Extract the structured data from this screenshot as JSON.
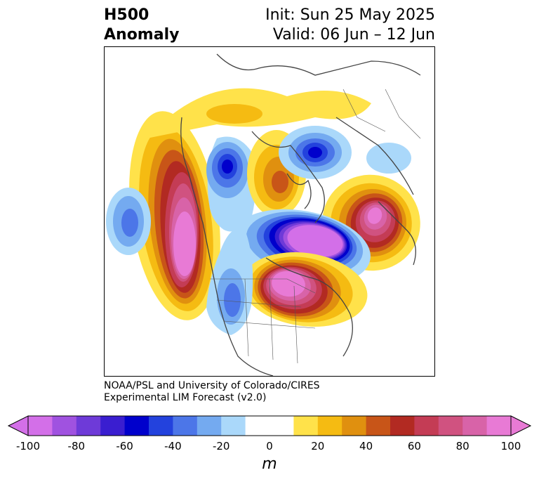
{
  "header": {
    "variable": "H500",
    "field": "Anomaly",
    "init": "Init: Sun 25 May 2025",
    "valid": "Valid: 06 Jun – 12 Jun"
  },
  "credit": {
    "line1": "NOAA/PSL and University of Colorado/CIRES",
    "line2": "Experimental LIM Forecast (v2.0)"
  },
  "colorbar": {
    "unit": "m",
    "ticks": [
      "-100",
      "-80",
      "-60",
      "-40",
      "-20",
      "0",
      "20",
      "40",
      "60",
      "80",
      "100"
    ],
    "colors": [
      "#d36fe8",
      "#a052e0",
      "#6e3ad8",
      "#3a1ed0",
      "#0000cc",
      "#2342dd",
      "#4c76e8",
      "#74aaf0",
      "#aad8fa",
      "#ffffff",
      "#ffffff",
      "#ffe24a",
      "#f5bb12",
      "#e0900f",
      "#c85518",
      "#b22a22",
      "#c43c55",
      "#d05280",
      "#d863a8",
      "#e87ad5"
    ],
    "extend_low_color": "#d36fe8",
    "extend_high_color": "#e87ad5"
  },
  "map": {
    "projection": "polar stereographic, North America / Atlantic sector",
    "features": [
      {
        "name": "ridge-eastern-pacific",
        "sign": "positive",
        "peak": 100
      },
      {
        "name": "trough-central-pacific",
        "sign": "negative",
        "peak": -40
      },
      {
        "name": "trough-alaska-yukon",
        "sign": "negative",
        "peak": -60
      },
      {
        "name": "ridge-hudson-bay",
        "sign": "positive",
        "peak": 40
      },
      {
        "name": "trough-greenland-baffin",
        "sign": "negative",
        "peak": -60
      },
      {
        "name": "ridge-northern-canada",
        "sign": "positive",
        "peak": 20
      },
      {
        "name": "ridge-western-europe",
        "sign": "positive",
        "peak": 80
      },
      {
        "name": "trough-north-atlantic",
        "sign": "negative",
        "peak": -100
      },
      {
        "name": "ridge-eastern-canada",
        "sign": "positive",
        "peak": 100
      },
      {
        "name": "trough-western-us",
        "sign": "negative",
        "peak": -40
      }
    ]
  }
}
